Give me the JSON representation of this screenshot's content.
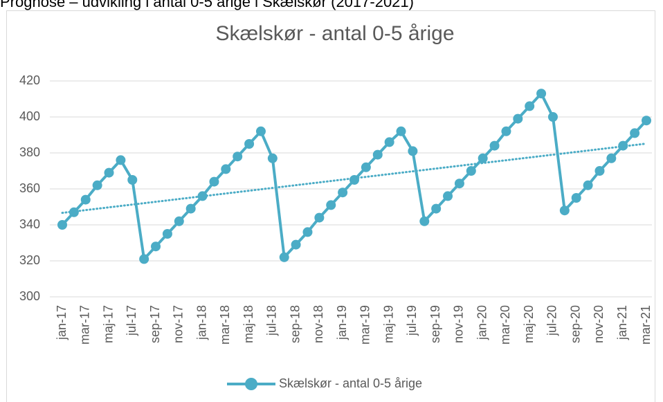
{
  "header": "Prognose – udvikling i antal 0-5 årige i Skælskør (2017-2021)",
  "chart_data": {
    "type": "line",
    "title": "Skælskør - antal 0-5 årige",
    "categories": [
      "jan-17",
      null,
      "mar-17",
      null,
      "maj-17",
      null,
      "jul-17",
      null,
      "sep-17",
      null,
      "nov-17",
      null,
      "jan-18",
      null,
      "mar-18",
      null,
      "maj-18",
      null,
      "jul-18",
      null,
      "sep-18",
      null,
      "nov-18",
      null,
      "jan-19",
      null,
      "mar-19",
      null,
      "maj-19",
      null,
      "jul-19",
      null,
      "sep-19",
      null,
      "nov-19",
      null,
      "jan-20",
      null,
      "mar-20",
      null,
      "maj-20",
      null,
      "jul-20",
      null,
      "sep-20",
      null,
      "nov-20",
      null,
      "jan-21",
      null,
      "mar-21"
    ],
    "series": [
      {
        "name": "Skælskør - antal 0-5 årige",
        "color": "#4bacc6",
        "values": [
          340,
          347,
          354,
          362,
          369,
          376,
          365,
          321,
          328,
          335,
          342,
          349,
          356,
          364,
          371,
          378,
          385,
          392,
          377,
          322,
          329,
          336,
          344,
          351,
          358,
          365,
          372,
          379,
          386,
          392,
          381,
          342,
          349,
          356,
          363,
          370,
          377,
          384,
          392,
          399,
          406,
          413,
          400,
          348,
          355,
          362,
          370,
          377,
          384,
          391,
          398
        ]
      }
    ],
    "trendline": "linear",
    "ylim": [
      300,
      420
    ],
    "yticks": [
      300,
      320,
      340,
      360,
      380,
      400,
      420
    ],
    "grid": true,
    "legend": "bottom"
  }
}
